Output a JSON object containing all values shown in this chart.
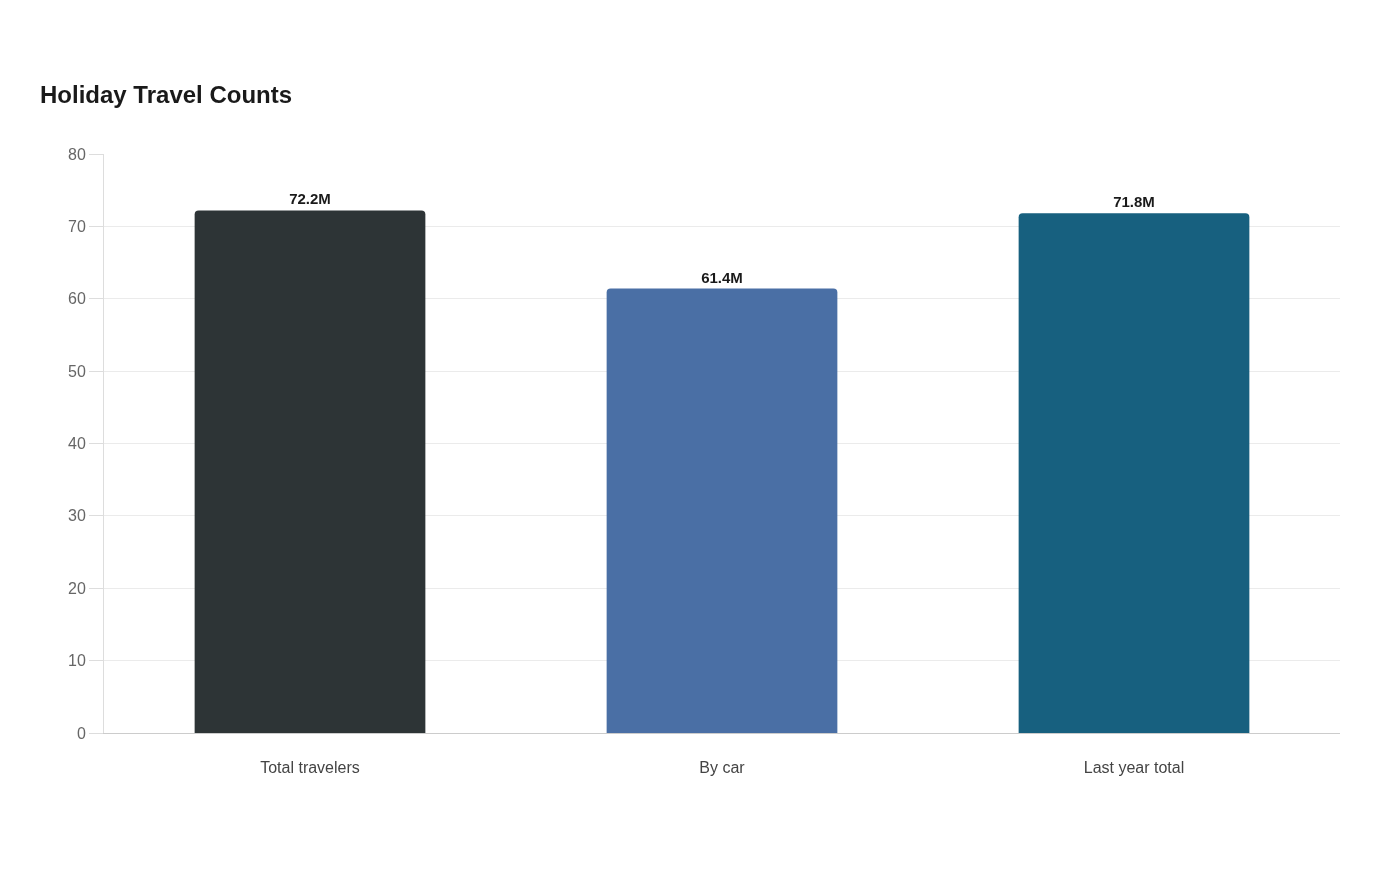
{
  "chart_data": {
    "type": "bar",
    "title": "Holiday Travel Counts",
    "categories": [
      "Total travelers",
      "By car",
      "Last year total"
    ],
    "values": [
      72.2,
      61.4,
      71.8
    ],
    "colors": [
      "#2d3436",
      "#4a6fa5",
      "#17607f"
    ],
    "value_labels": [
      "72.2M",
      "61.4M",
      "71.8M"
    ],
    "ylim": [
      0,
      80
    ],
    "yticks": [
      0,
      10,
      20,
      30,
      40,
      50,
      60,
      70,
      80
    ],
    "grid": "y"
  }
}
